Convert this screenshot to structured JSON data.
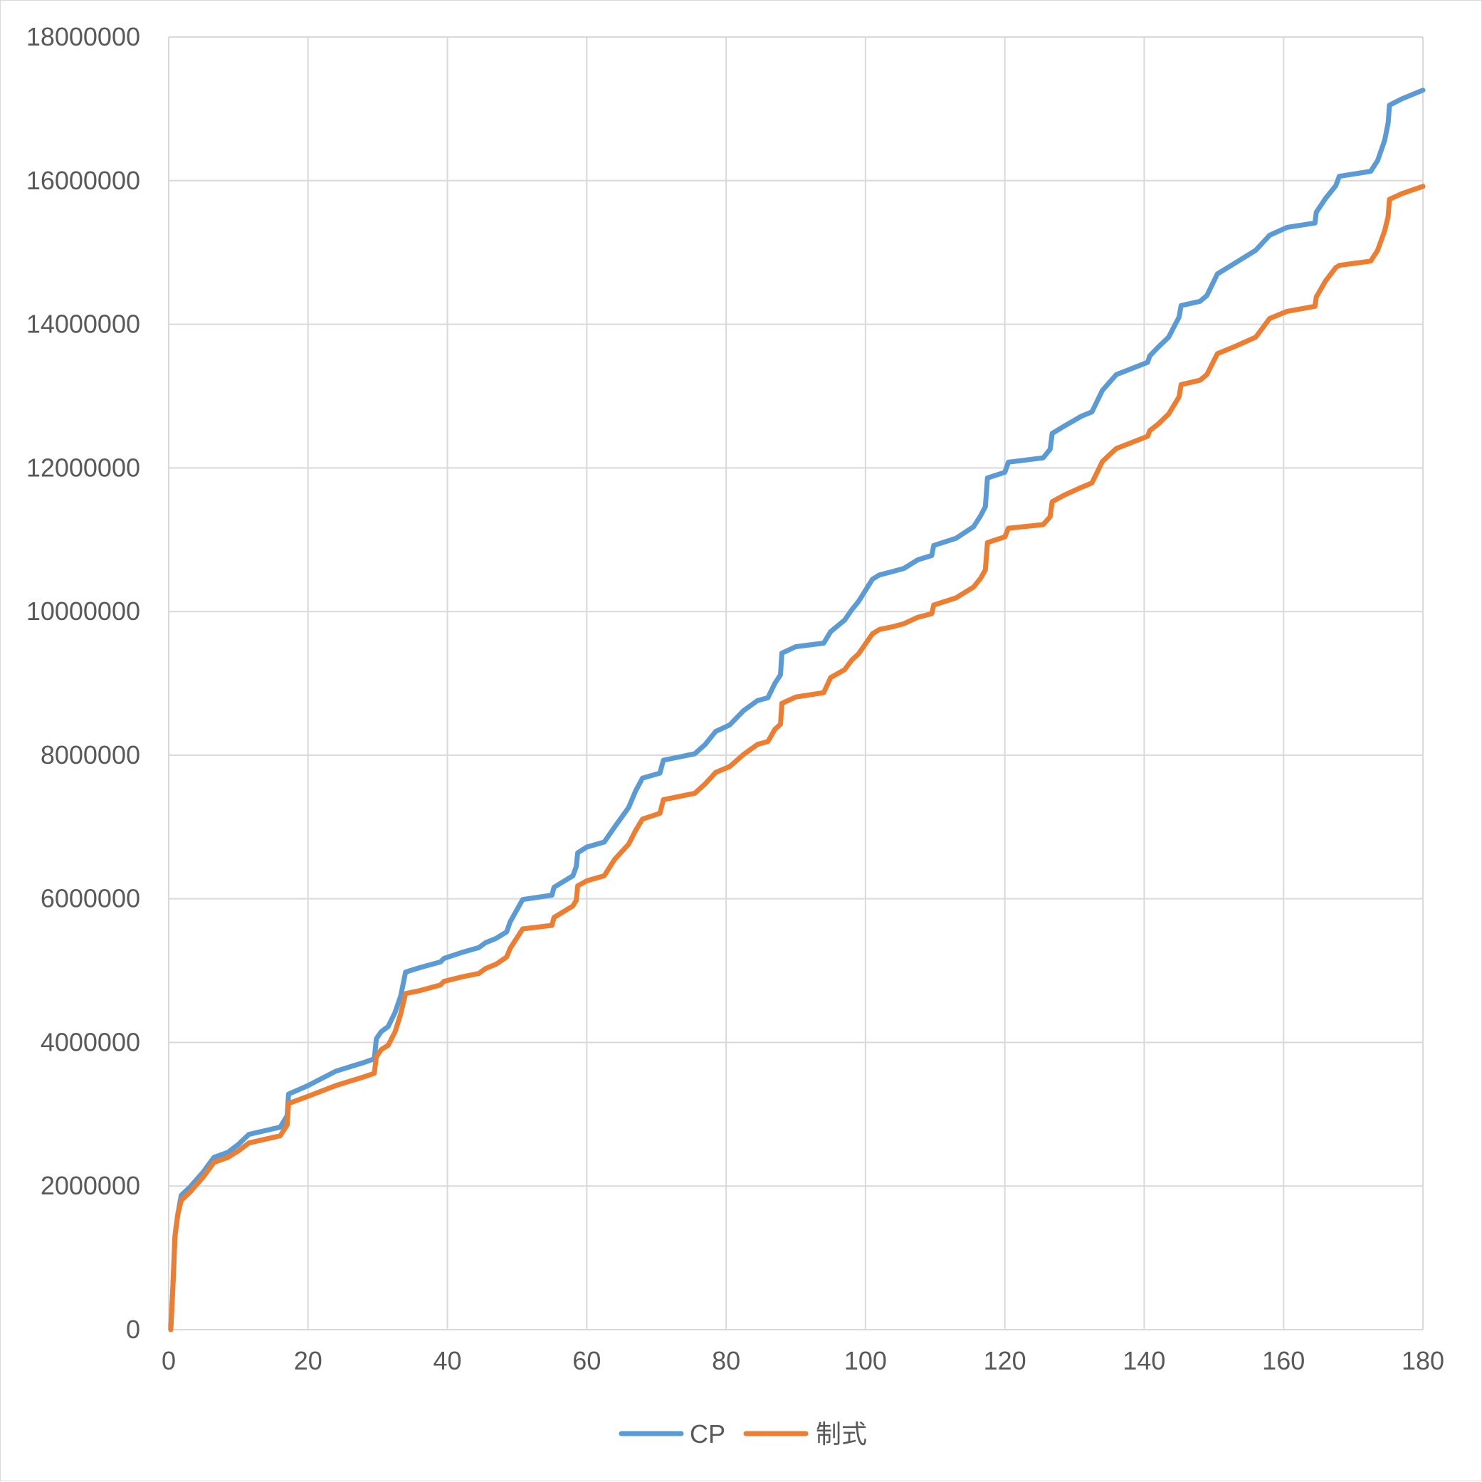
{
  "chart_data": {
    "type": "line",
    "title": "",
    "xlabel": "",
    "ylabel": "",
    "xlim": [
      0,
      180
    ],
    "ylim": [
      0,
      18000000
    ],
    "x_ticks": [
      "0",
      "20",
      "40",
      "60",
      "80",
      "100",
      "120",
      "140",
      "160",
      "180"
    ],
    "y_ticks": [
      "0",
      "2000000",
      "4000000",
      "6000000",
      "8000000",
      "10000000",
      "12000000",
      "14000000",
      "16000000",
      "18000000"
    ],
    "grid": true,
    "legend_position": "bottom",
    "series": [
      {
        "name": "CP",
        "color": "#5b9bd5",
        "points": [
          [
            0.3,
            0
          ],
          [
            0.6,
            600000
          ],
          [
            0.9,
            1300000
          ],
          [
            1.3,
            1600000
          ],
          [
            1.8,
            1870000
          ],
          [
            3,
            1980000
          ],
          [
            5,
            2200000
          ],
          [
            6.5,
            2400000
          ],
          [
            8.5,
            2470000
          ],
          [
            10,
            2580000
          ],
          [
            11.5,
            2720000
          ],
          [
            16,
            2820000
          ],
          [
            17,
            2980000
          ],
          [
            17.2,
            3280000
          ],
          [
            20,
            3400000
          ],
          [
            24,
            3600000
          ],
          [
            28,
            3720000
          ],
          [
            29.5,
            3770000
          ],
          [
            29.8,
            4050000
          ],
          [
            30.5,
            4150000
          ],
          [
            31.5,
            4220000
          ],
          [
            32.5,
            4420000
          ],
          [
            33.3,
            4650000
          ],
          [
            34,
            4980000
          ],
          [
            36,
            5040000
          ],
          [
            39,
            5120000
          ],
          [
            39.5,
            5170000
          ],
          [
            42,
            5250000
          ],
          [
            44.5,
            5320000
          ],
          [
            45.5,
            5390000
          ],
          [
            47,
            5450000
          ],
          [
            48.5,
            5540000
          ],
          [
            49,
            5680000
          ],
          [
            50.8,
            5990000
          ],
          [
            55,
            6050000
          ],
          [
            55.3,
            6160000
          ],
          [
            58,
            6320000
          ],
          [
            58.5,
            6450000
          ],
          [
            58.7,
            6640000
          ],
          [
            60,
            6720000
          ],
          [
            62.5,
            6790000
          ],
          [
            64,
            7000000
          ],
          [
            66,
            7270000
          ],
          [
            67,
            7500000
          ],
          [
            68,
            7680000
          ],
          [
            70.5,
            7750000
          ],
          [
            71,
            7930000
          ],
          [
            75.5,
            8020000
          ],
          [
            77,
            8150000
          ],
          [
            78.5,
            8330000
          ],
          [
            80.5,
            8420000
          ],
          [
            82.5,
            8620000
          ],
          [
            84.5,
            8760000
          ],
          [
            86,
            8800000
          ],
          [
            87,
            9000000
          ],
          [
            87.8,
            9120000
          ],
          [
            88,
            9420000
          ],
          [
            90,
            9510000
          ],
          [
            94,
            9560000
          ],
          [
            95,
            9720000
          ],
          [
            97,
            9880000
          ],
          [
            98,
            10020000
          ],
          [
            99,
            10140000
          ],
          [
            101,
            10450000
          ],
          [
            102,
            10510000
          ],
          [
            104,
            10560000
          ],
          [
            105.5,
            10600000
          ],
          [
            107.5,
            10720000
          ],
          [
            109.5,
            10780000
          ],
          [
            109.8,
            10920000
          ],
          [
            113,
            11020000
          ],
          [
            115.5,
            11180000
          ],
          [
            116.5,
            11330000
          ],
          [
            117.2,
            11460000
          ],
          [
            117.5,
            11860000
          ],
          [
            120,
            11940000
          ],
          [
            120.5,
            12080000
          ],
          [
            125.5,
            12140000
          ],
          [
            126.5,
            12260000
          ],
          [
            126.8,
            12480000
          ],
          [
            128.5,
            12580000
          ],
          [
            131,
            12720000
          ],
          [
            132.5,
            12780000
          ],
          [
            134,
            13080000
          ],
          [
            136,
            13300000
          ],
          [
            140.5,
            13470000
          ],
          [
            140.8,
            13560000
          ],
          [
            142,
            13680000
          ],
          [
            143.5,
            13820000
          ],
          [
            145,
            14100000
          ],
          [
            145.3,
            14260000
          ],
          [
            148,
            14320000
          ],
          [
            149,
            14400000
          ],
          [
            150.5,
            14700000
          ],
          [
            153,
            14850000
          ],
          [
            156,
            15030000
          ],
          [
            158,
            15240000
          ],
          [
            160.5,
            15350000
          ],
          [
            164.5,
            15410000
          ],
          [
            164.7,
            15560000
          ],
          [
            166,
            15750000
          ],
          [
            167.5,
            15930000
          ],
          [
            168,
            16060000
          ],
          [
            172.5,
            16130000
          ],
          [
            173.5,
            16280000
          ],
          [
            174.5,
            16560000
          ],
          [
            175,
            16800000
          ],
          [
            175.2,
            17050000
          ],
          [
            177,
            17140000
          ],
          [
            180,
            17260000
          ]
        ]
      },
      {
        "name": "制式",
        "color": "#ed7d31",
        "points": [
          [
            0.3,
            0
          ],
          [
            0.6,
            600000
          ],
          [
            0.9,
            1300000
          ],
          [
            1.3,
            1600000
          ],
          [
            1.8,
            1800000
          ],
          [
            3,
            1910000
          ],
          [
            5,
            2130000
          ],
          [
            6.5,
            2330000
          ],
          [
            8.5,
            2400000
          ],
          [
            10,
            2490000
          ],
          [
            11.5,
            2600000
          ],
          [
            16,
            2700000
          ],
          [
            17,
            2850000
          ],
          [
            17.2,
            3150000
          ],
          [
            20,
            3250000
          ],
          [
            24,
            3400000
          ],
          [
            28,
            3520000
          ],
          [
            29.5,
            3570000
          ],
          [
            29.8,
            3800000
          ],
          [
            30.5,
            3900000
          ],
          [
            31.5,
            3960000
          ],
          [
            32.5,
            4150000
          ],
          [
            33.3,
            4400000
          ],
          [
            34,
            4680000
          ],
          [
            36,
            4720000
          ],
          [
            39,
            4800000
          ],
          [
            39.5,
            4850000
          ],
          [
            42,
            4910000
          ],
          [
            44.5,
            4960000
          ],
          [
            45.5,
            5030000
          ],
          [
            47,
            5090000
          ],
          [
            48.5,
            5190000
          ],
          [
            49,
            5310000
          ],
          [
            50.8,
            5580000
          ],
          [
            55,
            5630000
          ],
          [
            55.3,
            5740000
          ],
          [
            58,
            5900000
          ],
          [
            58.5,
            5980000
          ],
          [
            58.7,
            6180000
          ],
          [
            60,
            6250000
          ],
          [
            62.5,
            6320000
          ],
          [
            64,
            6550000
          ],
          [
            66,
            6760000
          ],
          [
            67,
            6950000
          ],
          [
            68,
            7110000
          ],
          [
            70.5,
            7190000
          ],
          [
            71,
            7380000
          ],
          [
            75.5,
            7470000
          ],
          [
            77,
            7600000
          ],
          [
            78.5,
            7760000
          ],
          [
            80.5,
            7840000
          ],
          [
            82.5,
            8010000
          ],
          [
            84.5,
            8150000
          ],
          [
            86,
            8190000
          ],
          [
            87,
            8360000
          ],
          [
            87.8,
            8430000
          ],
          [
            88,
            8720000
          ],
          [
            90,
            8810000
          ],
          [
            94,
            8870000
          ],
          [
            95,
            9080000
          ],
          [
            97,
            9190000
          ],
          [
            98,
            9320000
          ],
          [
            99,
            9410000
          ],
          [
            101,
            9690000
          ],
          [
            102,
            9750000
          ],
          [
            104,
            9790000
          ],
          [
            105.5,
            9830000
          ],
          [
            107.5,
            9920000
          ],
          [
            109.5,
            9970000
          ],
          [
            109.8,
            10090000
          ],
          [
            113,
            10190000
          ],
          [
            115.5,
            10340000
          ],
          [
            116.5,
            10460000
          ],
          [
            117.2,
            10580000
          ],
          [
            117.5,
            10960000
          ],
          [
            120,
            11040000
          ],
          [
            120.5,
            11160000
          ],
          [
            125.5,
            11210000
          ],
          [
            126.5,
            11320000
          ],
          [
            126.8,
            11530000
          ],
          [
            128.5,
            11620000
          ],
          [
            131,
            11730000
          ],
          [
            132.5,
            11790000
          ],
          [
            134,
            12090000
          ],
          [
            136,
            12270000
          ],
          [
            140.5,
            12440000
          ],
          [
            140.8,
            12520000
          ],
          [
            142,
            12610000
          ],
          [
            143.5,
            12750000
          ],
          [
            145,
            12990000
          ],
          [
            145.3,
            13160000
          ],
          [
            148,
            13220000
          ],
          [
            149,
            13300000
          ],
          [
            150.5,
            13590000
          ],
          [
            153,
            13690000
          ],
          [
            156,
            13820000
          ],
          [
            158,
            14080000
          ],
          [
            160.5,
            14180000
          ],
          [
            164.5,
            14250000
          ],
          [
            164.7,
            14380000
          ],
          [
            166,
            14600000
          ],
          [
            167.5,
            14790000
          ],
          [
            168,
            14820000
          ],
          [
            172.5,
            14880000
          ],
          [
            173.5,
            15030000
          ],
          [
            174.5,
            15300000
          ],
          [
            175,
            15500000
          ],
          [
            175.2,
            15740000
          ],
          [
            177,
            15820000
          ],
          [
            180,
            15920000
          ]
        ]
      }
    ]
  }
}
